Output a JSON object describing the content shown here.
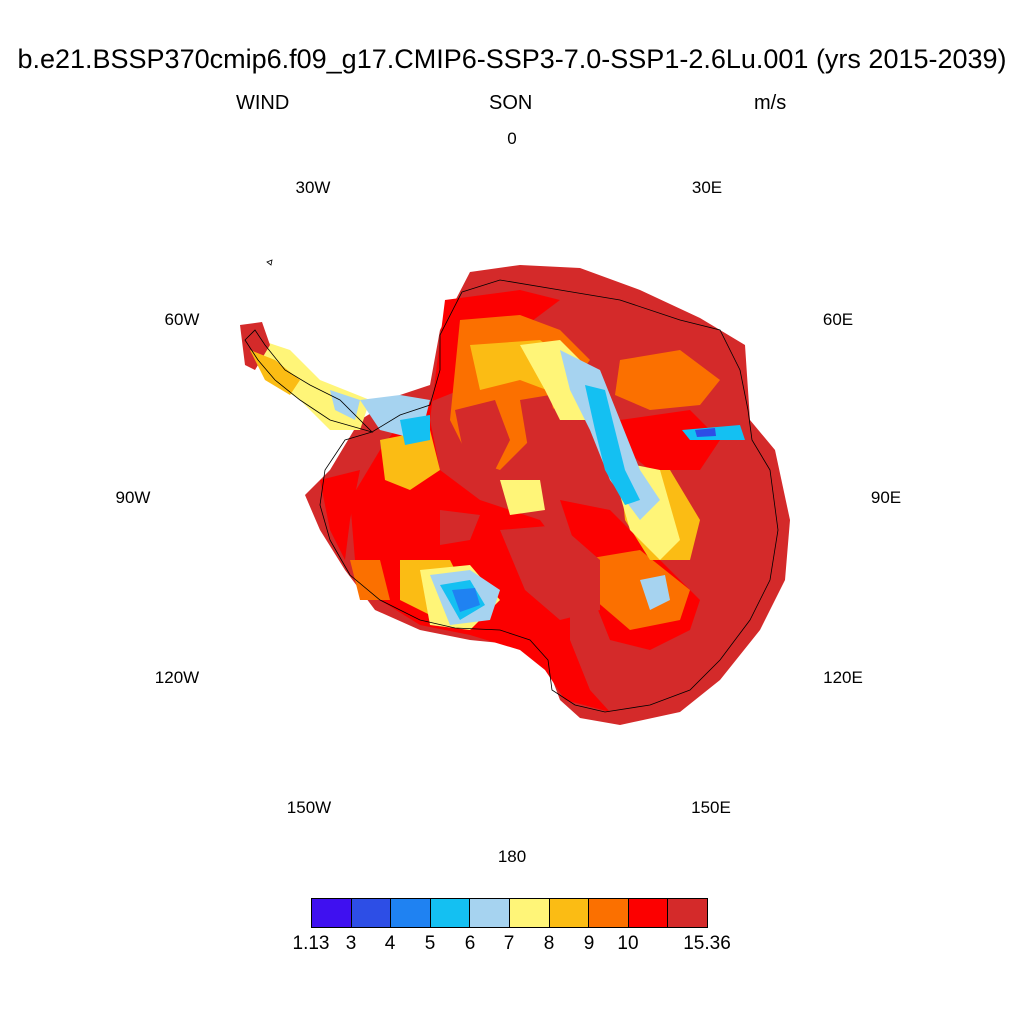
{
  "header": {
    "title": "b.e21.BSSP370cmip6.f09_g17.CMIP6-SSP3-7.0-SSP1-2.6Lu.001 (yrs 2015-2039)",
    "variable": "WIND",
    "season": "SON",
    "units": "m/s"
  },
  "longitude_labels": [
    "0",
    "30E",
    "60E",
    "90E",
    "120E",
    "150E",
    "180",
    "150W",
    "120W",
    "90W",
    "60W",
    "30W"
  ],
  "colorbar": {
    "colors": [
      "#3f10f0",
      "#2d4ee6",
      "#1f82f2",
      "#14c0f2",
      "#a6d3f0",
      "#fff578",
      "#fbbc14",
      "#fb7000",
      "#fc0000",
      "#d42a2a"
    ],
    "tick_labels": [
      "1.13",
      "3",
      "4",
      "5",
      "6",
      "7",
      "8",
      "9",
      "10",
      "15.36"
    ]
  }
}
